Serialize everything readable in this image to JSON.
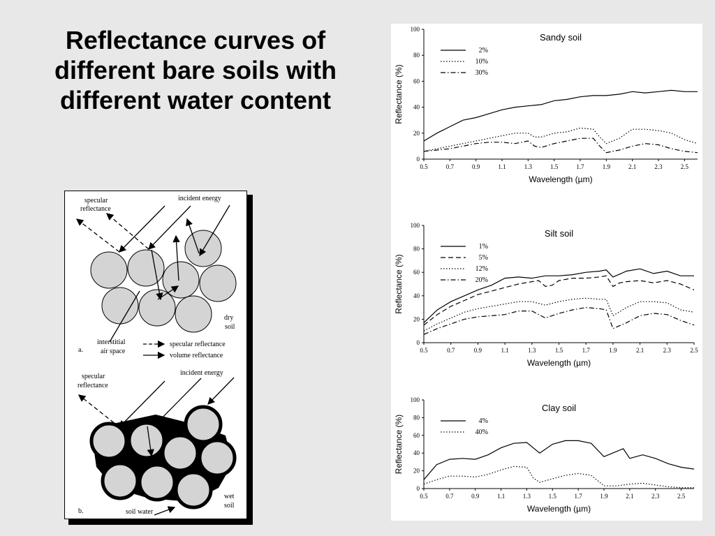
{
  "slide": {
    "title_lines": [
      "Reflectance curves of",
      "different bare soils with",
      "different water content"
    ]
  },
  "diagram": {
    "a": {
      "panel_label": "a.",
      "specular_label_1": "specular",
      "specular_label_2": "reflectance",
      "incident_label": "incident energy",
      "soil_label_1": "dry",
      "soil_label_2": "soil",
      "air_label_1": "interstitial",
      "air_label_2": "air space",
      "legend_specular": "specular reflectance",
      "legend_volume": "volume reflectance"
    },
    "b": {
      "panel_label": "b.",
      "specular_label_1": "specular",
      "specular_label_2": "reflectance",
      "incident_label": "incident energy",
      "soil_label_1": "wet",
      "soil_label_2": "soil",
      "water_label": "soil water"
    }
  },
  "chart_data": [
    {
      "type": "line",
      "title": "Sandy soil",
      "xlabel": "Wavelength (µm)",
      "ylabel": "Reflectance (%)",
      "xlim": [
        0.5,
        2.6
      ],
      "ylim": [
        0,
        100
      ],
      "xticks": [
        "0.5",
        "0.7",
        "0.9",
        "1.1",
        "1.3",
        "1.5",
        "1.7",
        "1.9",
        "2.1",
        "2.3",
        "2.5"
      ],
      "yticks": [
        "0",
        "20",
        "40",
        "60",
        "80",
        "100"
      ],
      "legend": "top-left",
      "series": [
        {
          "name": "2%",
          "style": "solid",
          "x": [
            0.5,
            0.6,
            0.7,
            0.8,
            0.9,
            1.0,
            1.1,
            1.2,
            1.3,
            1.4,
            1.5,
            1.6,
            1.7,
            1.8,
            1.9,
            2.0,
            2.1,
            2.2,
            2.3,
            2.4,
            2.5,
            2.6
          ],
          "y": [
            14,
            20,
            25,
            30,
            32,
            35,
            38,
            40,
            41,
            42,
            45,
            46,
            48,
            49,
            49,
            50,
            52,
            51,
            52,
            53,
            52,
            52
          ]
        },
        {
          "name": "10%",
          "style": "dotted",
          "x": [
            0.5,
            0.6,
            0.7,
            0.8,
            0.9,
            1.0,
            1.1,
            1.2,
            1.3,
            1.35,
            1.4,
            1.5,
            1.6,
            1.7,
            1.8,
            1.85,
            1.9,
            2.0,
            2.1,
            2.2,
            2.3,
            2.4,
            2.5,
            2.6
          ],
          "y": [
            6,
            8,
            10,
            12,
            14,
            16,
            18,
            20,
            20,
            17,
            17,
            20,
            21,
            24,
            23,
            17,
            12,
            16,
            23,
            23,
            22,
            20,
            15,
            12
          ]
        },
        {
          "name": "30%",
          "style": "dashdot",
          "x": [
            0.5,
            0.6,
            0.7,
            0.8,
            0.9,
            1.0,
            1.1,
            1.2,
            1.3,
            1.35,
            1.4,
            1.5,
            1.6,
            1.7,
            1.8,
            1.85,
            1.9,
            2.0,
            2.1,
            2.2,
            2.3,
            2.4,
            2.5,
            2.6
          ],
          "y": [
            6,
            7,
            8,
            10,
            12,
            13,
            13,
            12,
            14,
            10,
            9,
            12,
            14,
            16,
            16,
            10,
            5,
            7,
            10,
            12,
            11,
            8,
            6,
            5
          ]
        }
      ]
    },
    {
      "type": "line",
      "title": "Silt soil",
      "xlabel": "Wavelength (µm)",
      "ylabel": "Reflectance (%)",
      "xlim": [
        0.5,
        2.5
      ],
      "ylim": [
        0,
        100
      ],
      "xticks": [
        "0.5",
        "0.7",
        "0.9",
        "1.1",
        "1.3",
        "1.5",
        "1.7",
        "1.9",
        "2.1",
        "2.3",
        "2.5"
      ],
      "yticks": [
        "0",
        "20",
        "40",
        "60",
        "80",
        "100"
      ],
      "legend": "top-left",
      "series": [
        {
          "name": "1%",
          "style": "solid",
          "x": [
            0.5,
            0.6,
            0.7,
            0.8,
            0.9,
            1.0,
            1.1,
            1.2,
            1.3,
            1.4,
            1.5,
            1.6,
            1.7,
            1.8,
            1.85,
            1.9,
            2.0,
            2.1,
            2.2,
            2.3,
            2.4,
            2.5
          ],
          "y": [
            17,
            28,
            35,
            40,
            45,
            49,
            55,
            56,
            55,
            57,
            57,
            58,
            60,
            61,
            62,
            56,
            61,
            63,
            59,
            61,
            57,
            57
          ]
        },
        {
          "name": "5%",
          "style": "dashed",
          "x": [
            0.5,
            0.6,
            0.7,
            0.8,
            0.9,
            1.0,
            1.1,
            1.2,
            1.3,
            1.35,
            1.4,
            1.45,
            1.5,
            1.6,
            1.7,
            1.8,
            1.85,
            1.9,
            1.95,
            2.0,
            2.1,
            2.2,
            2.3,
            2.4,
            2.5
          ],
          "y": [
            15,
            24,
            31,
            36,
            41,
            44,
            47,
            50,
            52,
            53,
            48,
            49,
            53,
            55,
            55,
            56,
            57,
            48,
            51,
            52,
            53,
            51,
            53,
            50,
            45
          ]
        },
        {
          "name": "12%",
          "style": "dotted",
          "x": [
            0.5,
            0.6,
            0.7,
            0.8,
            0.9,
            1.0,
            1.1,
            1.2,
            1.3,
            1.4,
            1.5,
            1.6,
            1.7,
            1.8,
            1.85,
            1.9,
            2.0,
            2.1,
            2.2,
            2.3,
            2.4,
            2.5
          ],
          "y": [
            10,
            16,
            21,
            26,
            29,
            31,
            33,
            35,
            35,
            32,
            35,
            37,
            38,
            37,
            37,
            23,
            30,
            35,
            35,
            34,
            28,
            26
          ]
        },
        {
          "name": "20%",
          "style": "dashdot",
          "x": [
            0.5,
            0.6,
            0.7,
            0.8,
            0.9,
            1.0,
            1.1,
            1.2,
            1.3,
            1.4,
            1.5,
            1.6,
            1.7,
            1.8,
            1.85,
            1.9,
            2.0,
            2.1,
            2.2,
            2.3,
            2.4,
            2.5
          ],
          "y": [
            7,
            12,
            16,
            20,
            22,
            23,
            24,
            27,
            27,
            21,
            25,
            28,
            30,
            29,
            28,
            12,
            17,
            23,
            25,
            24,
            19,
            15
          ]
        }
      ]
    },
    {
      "type": "line",
      "title": "Clay soil",
      "xlabel": "Wavelength (µm)",
      "ylabel": "Reflectance (%)",
      "xlim": [
        0.5,
        2.6
      ],
      "ylim": [
        0,
        100
      ],
      "xticks": [
        "0.5",
        "0.7",
        "0.9",
        "1.1",
        "1.3",
        "1.5",
        "1.7",
        "1.9",
        "2.1",
        "2.3",
        "2.5"
      ],
      "yticks": [
        "0",
        "20",
        "40",
        "60",
        "80",
        "100"
      ],
      "legend": "top-left",
      "series": [
        {
          "name": "4%",
          "style": "solid",
          "x": [
            0.5,
            0.6,
            0.7,
            0.8,
            0.9,
            1.0,
            1.1,
            1.2,
            1.3,
            1.4,
            1.5,
            1.6,
            1.7,
            1.8,
            1.9,
            2.0,
            2.05,
            2.1,
            2.2,
            2.3,
            2.4,
            2.5,
            2.6
          ],
          "y": [
            10,
            27,
            33,
            34,
            33,
            38,
            46,
            51,
            52,
            40,
            50,
            54,
            54,
            51,
            36,
            42,
            45,
            34,
            38,
            34,
            28,
            24,
            22
          ]
        },
        {
          "name": "40%",
          "style": "dotted",
          "x": [
            0.5,
            0.6,
            0.7,
            0.8,
            0.9,
            1.0,
            1.1,
            1.2,
            1.3,
            1.35,
            1.4,
            1.5,
            1.6,
            1.7,
            1.8,
            1.9,
            2.0,
            2.1,
            2.2,
            2.3,
            2.4,
            2.5,
            2.6
          ],
          "y": [
            5,
            10,
            14,
            14,
            13,
            16,
            21,
            25,
            24,
            12,
            7,
            11,
            15,
            17,
            15,
            3,
            3,
            5,
            6,
            4,
            2,
            1,
            1
          ]
        }
      ]
    }
  ]
}
